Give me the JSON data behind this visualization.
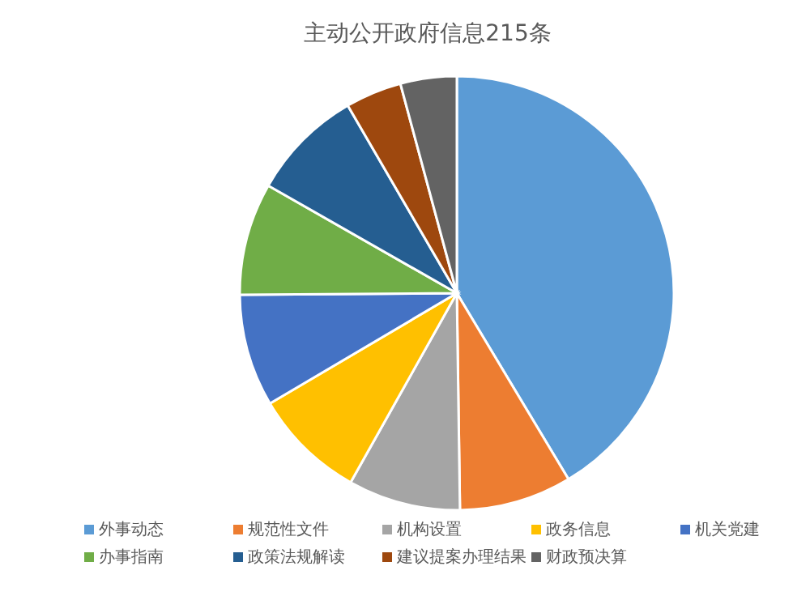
{
  "chart_data": {
    "type": "pie",
    "title": "主动公开政府信息215条",
    "categories": [
      "外事动态",
      "规范性文件",
      "机构设置",
      "政务信息",
      "机关党建",
      "办事指南",
      "政策法规解读",
      "建议提案办理结果",
      "财政预决算"
    ],
    "values": [
      41.4,
      8.37,
      8.37,
      8.37,
      8.37,
      8.37,
      8.37,
      4.19,
      4.19
    ],
    "colors": [
      "#5b9bd5",
      "#ed7d31",
      "#a5a5a5",
      "#ffc000",
      "#4472c4",
      "#70ad47",
      "#255e91",
      "#9e480e",
      "#636363"
    ],
    "legend": "bottom"
  }
}
